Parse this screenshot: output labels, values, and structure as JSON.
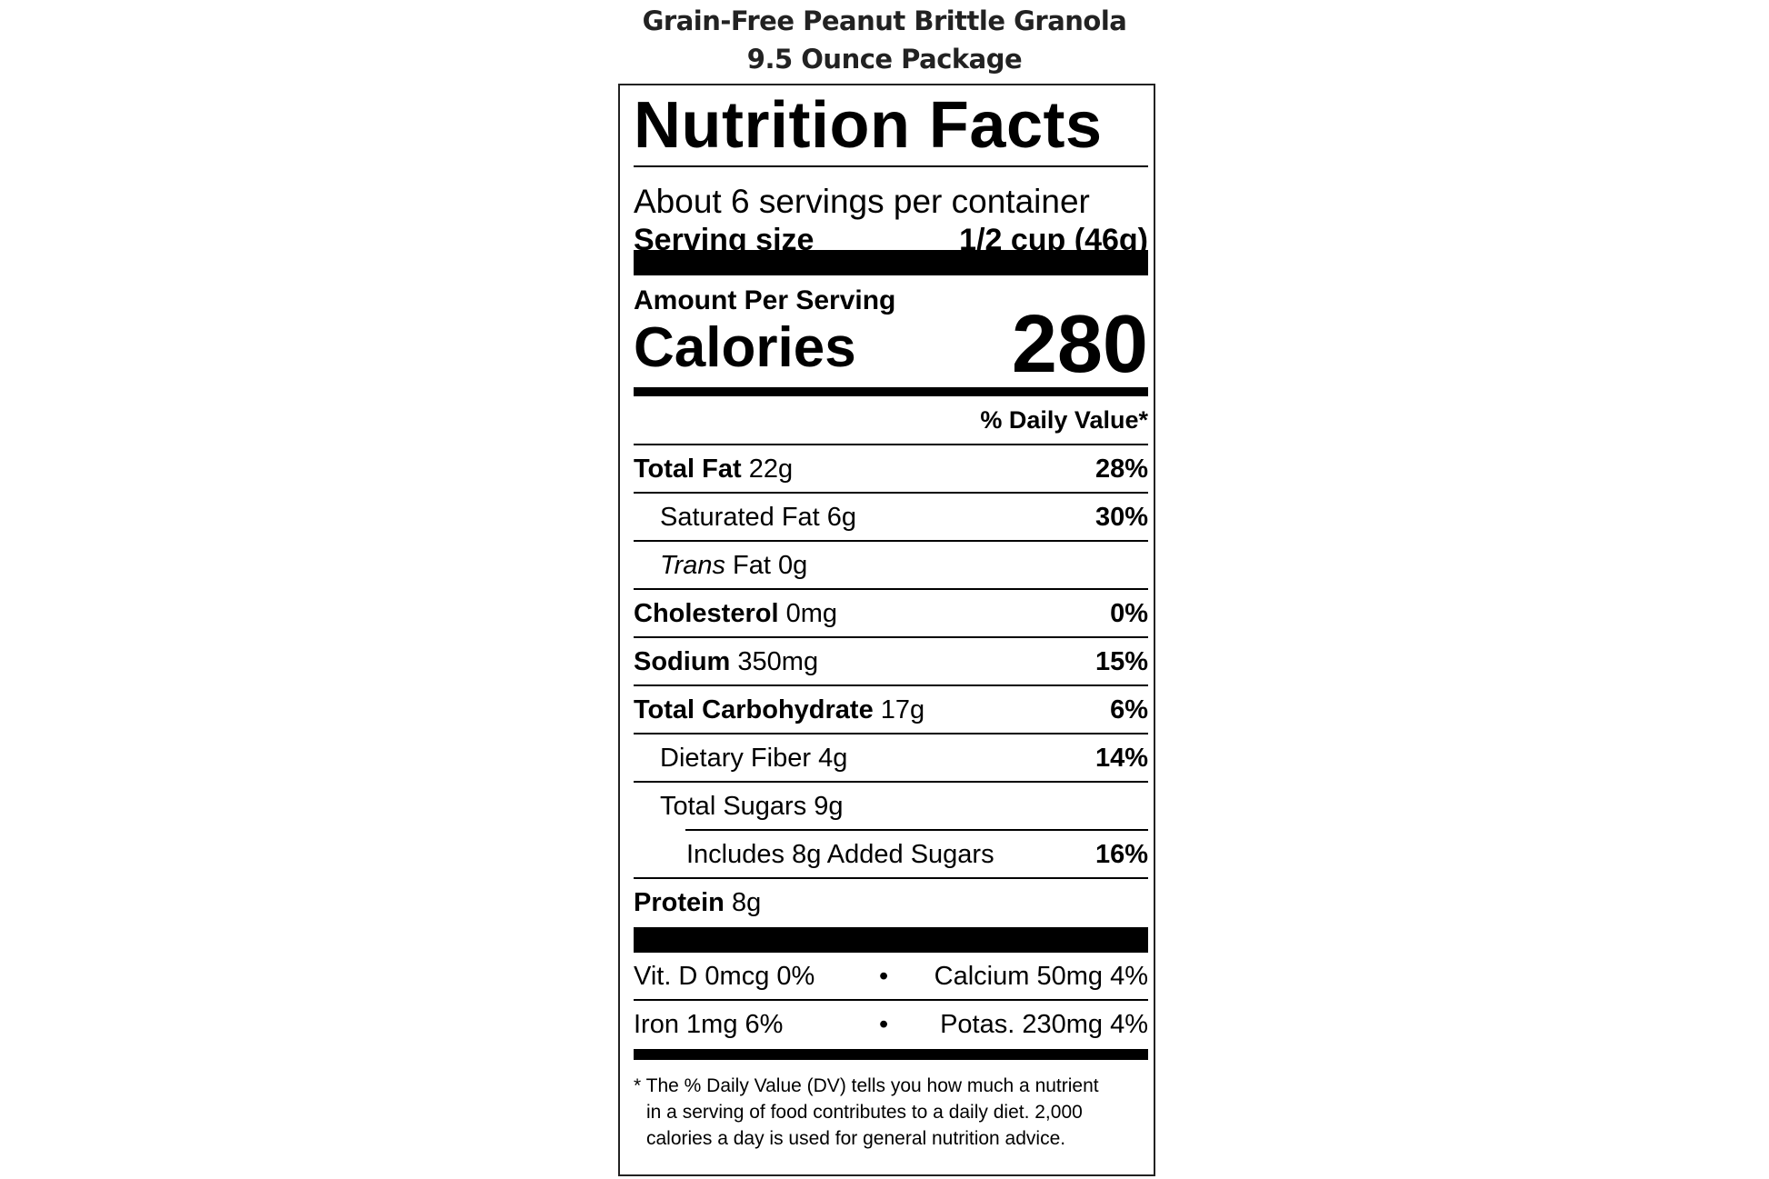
{
  "product": {
    "name": "Grain-Free Peanut Brittle Granola",
    "package": "9.5 Ounce Package"
  },
  "label": {
    "title": "Nutrition Facts",
    "servings_per_container": "About 6 servings per container",
    "serving_size_label": "Serving size",
    "serving_size_value": "1/2 cup (46g)",
    "amount_per_serving": "Amount Per Serving",
    "calories_label": "Calories",
    "calories_value": "280",
    "daily_value_header": "% Daily Value*",
    "nutrients": [
      {
        "name": "Total Fat",
        "amount": "22g",
        "dv": "28%"
      },
      {
        "name": "Saturated Fat",
        "amount": "6g",
        "dv": "30%"
      },
      {
        "name": "Trans",
        "name_suffix": "Fat",
        "amount": "0g",
        "dv": ""
      },
      {
        "name": "Cholesterol",
        "amount": "0mg",
        "dv": "0%"
      },
      {
        "name": "Sodium",
        "amount": "350mg",
        "dv": "15%"
      },
      {
        "name": "Total Carbohydrate",
        "amount": "17g",
        "dv": "6%"
      },
      {
        "name": "Dietary Fiber",
        "amount": "4g",
        "dv": "14%"
      },
      {
        "name": "Total Sugars",
        "amount": "9g",
        "dv": ""
      },
      {
        "name": "Includes 8g Added Sugars",
        "amount": "",
        "dv": "16%"
      },
      {
        "name": "Protein",
        "amount": "8g",
        "dv": ""
      }
    ],
    "vitamins": [
      {
        "left": "Vit. D 0mcg 0%",
        "bullet": "•",
        "right": "Calcium 50mg 4%"
      },
      {
        "left": "Iron 1mg 6%",
        "bullet": "•",
        "right": "Potas. 230mg 4%"
      }
    ],
    "footnote": [
      "* The % Daily Value (DV) tells you how much a nutrient",
      "in a serving of food contributes to a daily diet. 2,000",
      "calories a day is used for general nutrition advice."
    ]
  }
}
